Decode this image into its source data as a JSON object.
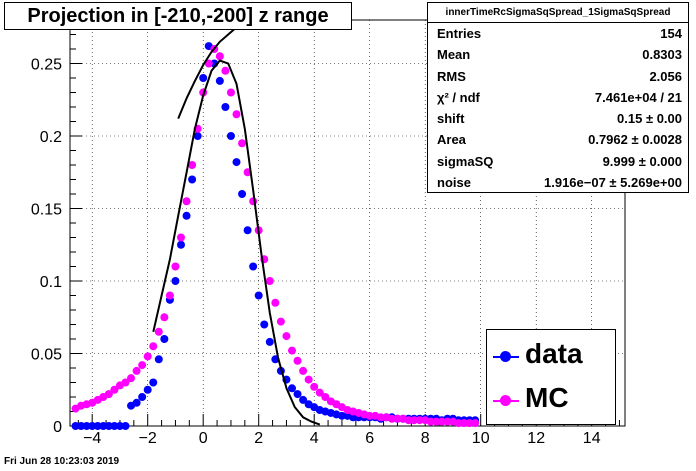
{
  "chart_data": {
    "type": "scatter",
    "title": "Projection in [-210,-200] z range",
    "xlim": [
      -4.8,
      15.2
    ],
    "ylim": [
      0,
      0.28
    ],
    "x_ticks": [
      -4,
      -2,
      0,
      2,
      4,
      6,
      8,
      10,
      12,
      14
    ],
    "y_ticks": [
      0.05,
      0.1,
      0.15,
      0.2,
      0.25
    ],
    "y_tick_labels": [
      "0.05",
      "0.1",
      "0.15",
      "0.2",
      "0.25"
    ],
    "grid": true,
    "legend_position": "bottom-right",
    "series": [
      {
        "name": "data",
        "color": "#0000ff",
        "points": [
          [
            -4.6,
            0.0
          ],
          [
            -4.4,
            0.0
          ],
          [
            -4.2,
            0.0
          ],
          [
            -4.0,
            0.0
          ],
          [
            -3.8,
            0.0
          ],
          [
            -3.6,
            0.0
          ],
          [
            -3.4,
            0.0
          ],
          [
            -3.2,
            0.0
          ],
          [
            -3.0,
            0.0
          ],
          [
            -2.8,
            0.0
          ],
          [
            -2.6,
            0.014
          ],
          [
            -2.4,
            0.016
          ],
          [
            -2.2,
            0.02
          ],
          [
            -2.0,
            0.025
          ],
          [
            -1.8,
            0.03
          ],
          [
            -1.6,
            0.046
          ],
          [
            -1.4,
            0.06
          ],
          [
            -1.2,
            0.087
          ],
          [
            -1.0,
            0.1
          ],
          [
            -0.8,
            0.125
          ],
          [
            -0.6,
            0.145
          ],
          [
            -0.4,
            0.17
          ],
          [
            -0.2,
            0.2
          ],
          [
            0.0,
            0.24
          ],
          [
            0.2,
            0.262
          ],
          [
            0.4,
            0.25
          ],
          [
            0.6,
            0.238
          ],
          [
            0.8,
            0.22
          ],
          [
            1.0,
            0.2
          ],
          [
            1.2,
            0.182
          ],
          [
            1.4,
            0.16
          ],
          [
            1.6,
            0.135
          ],
          [
            1.8,
            0.11
          ],
          [
            2.0,
            0.09
          ],
          [
            2.2,
            0.07
          ],
          [
            2.4,
            0.058
          ],
          [
            2.6,
            0.046
          ],
          [
            2.8,
            0.038
          ],
          [
            3.0,
            0.032
          ],
          [
            3.2,
            0.026
          ],
          [
            3.4,
            0.022
          ],
          [
            3.6,
            0.018
          ],
          [
            3.8,
            0.015
          ],
          [
            4.0,
            0.013
          ],
          [
            4.2,
            0.011
          ],
          [
            4.4,
            0.01
          ],
          [
            4.6,
            0.009
          ],
          [
            4.8,
            0.008
          ],
          [
            5.0,
            0.007
          ],
          [
            5.2,
            0.007
          ],
          [
            5.4,
            0.006
          ],
          [
            5.6,
            0.006
          ],
          [
            5.8,
            0.006
          ],
          [
            6.0,
            0.006
          ],
          [
            6.2,
            0.006
          ],
          [
            6.4,
            0.005
          ],
          [
            6.6,
            0.006
          ],
          [
            6.8,
            0.006
          ],
          [
            7.0,
            0.005
          ],
          [
            7.2,
            0.005
          ],
          [
            7.4,
            0.005
          ],
          [
            7.6,
            0.005
          ],
          [
            7.8,
            0.005
          ],
          [
            8.0,
            0.005
          ],
          [
            8.2,
            0.005
          ],
          [
            8.4,
            0.005
          ],
          [
            8.6,
            0.004
          ],
          [
            8.8,
            0.005
          ],
          [
            9.0,
            0.005
          ],
          [
            9.2,
            0.004
          ],
          [
            9.4,
            0.004
          ],
          [
            9.6,
            0.004
          ],
          [
            9.8,
            0.004
          ]
        ]
      },
      {
        "name": "MC",
        "color": "#ff00ff",
        "points": [
          [
            -4.6,
            0.012
          ],
          [
            -4.4,
            0.014
          ],
          [
            -4.2,
            0.015
          ],
          [
            -4.0,
            0.016
          ],
          [
            -3.8,
            0.018
          ],
          [
            -3.6,
            0.02
          ],
          [
            -3.4,
            0.022
          ],
          [
            -3.2,
            0.025
          ],
          [
            -3.0,
            0.028
          ],
          [
            -2.8,
            0.03
          ],
          [
            -2.6,
            0.033
          ],
          [
            -2.4,
            0.038
          ],
          [
            -2.2,
            0.042
          ],
          [
            -2.0,
            0.048
          ],
          [
            -1.8,
            0.055
          ],
          [
            -1.6,
            0.065
          ],
          [
            -1.4,
            0.075
          ],
          [
            -1.2,
            0.09
          ],
          [
            -1.0,
            0.11
          ],
          [
            -0.8,
            0.13
          ],
          [
            -0.6,
            0.155
          ],
          [
            -0.4,
            0.18
          ],
          [
            -0.2,
            0.205
          ],
          [
            0.0,
            0.23
          ],
          [
            0.2,
            0.25
          ],
          [
            0.4,
            0.26
          ],
          [
            0.6,
            0.255
          ],
          [
            0.8,
            0.245
          ],
          [
            1.0,
            0.23
          ],
          [
            1.2,
            0.215
          ],
          [
            1.4,
            0.195
          ],
          [
            1.6,
            0.175
          ],
          [
            1.8,
            0.155
          ],
          [
            2.0,
            0.135
          ],
          [
            2.2,
            0.115
          ],
          [
            2.4,
            0.1
          ],
          [
            2.6,
            0.085
          ],
          [
            2.8,
            0.072
          ],
          [
            3.0,
            0.062
          ],
          [
            3.2,
            0.052
          ],
          [
            3.4,
            0.045
          ],
          [
            3.6,
            0.038
          ],
          [
            3.8,
            0.032
          ],
          [
            4.0,
            0.027
          ],
          [
            4.2,
            0.023
          ],
          [
            4.4,
            0.02
          ],
          [
            4.6,
            0.017
          ],
          [
            4.8,
            0.015
          ],
          [
            5.0,
            0.013
          ],
          [
            5.2,
            0.011
          ],
          [
            5.4,
            0.01
          ],
          [
            5.6,
            0.009
          ],
          [
            5.8,
            0.008
          ],
          [
            6.0,
            0.007
          ],
          [
            6.2,
            0.007
          ],
          [
            6.4,
            0.006
          ],
          [
            6.6,
            0.006
          ],
          [
            6.8,
            0.005
          ],
          [
            7.0,
            0.005
          ],
          [
            7.2,
            0.005
          ],
          [
            7.4,
            0.004
          ],
          [
            7.6,
            0.004
          ],
          [
            7.8,
            0.004
          ],
          [
            8.0,
            0.004
          ],
          [
            8.2,
            0.003
          ],
          [
            8.4,
            0.003
          ],
          [
            8.6,
            0.003
          ],
          [
            8.8,
            0.003
          ],
          [
            9.0,
            0.003
          ],
          [
            9.2,
            0.002
          ],
          [
            9.4,
            0.002
          ],
          [
            9.6,
            0.002
          ],
          [
            9.8,
            0.002
          ]
        ]
      }
    ],
    "fit_curve": {
      "color": "#000000",
      "points": [
        [
          -1.8,
          0.065
        ],
        [
          -1.5,
          0.09
        ],
        [
          -1.2,
          0.115
        ],
        [
          -0.9,
          0.145
        ],
        [
          -0.6,
          0.175
        ],
        [
          -0.3,
          0.205
        ],
        [
          0.0,
          0.228
        ],
        [
          0.3,
          0.245
        ],
        [
          0.6,
          0.252
        ],
        [
          0.9,
          0.25
        ],
        [
          1.2,
          0.236
        ],
        [
          1.5,
          0.205
        ],
        [
          1.8,
          0.163
        ],
        [
          2.1,
          0.118
        ],
        [
          2.4,
          0.078
        ],
        [
          2.7,
          0.047
        ],
        [
          3.0,
          0.026
        ],
        [
          3.3,
          0.013
        ],
        [
          3.6,
          0.006
        ],
        [
          3.9,
          0.003
        ],
        [
          4.2,
          0.001
        ]
      ]
    },
    "fit_curve_upper": {
      "color": "#000000",
      "points": [
        [
          -0.9,
          0.212
        ],
        [
          -0.6,
          0.226
        ],
        [
          -0.3,
          0.238
        ],
        [
          0.0,
          0.249
        ],
        [
          0.3,
          0.258
        ],
        [
          0.6,
          0.265
        ],
        [
          0.9,
          0.27
        ],
        [
          1.2,
          0.275
        ],
        [
          1.5,
          0.279
        ]
      ]
    }
  },
  "stats_box": {
    "name": "innerTimeRcSigmaSqSpread_1SigmaSqSpread",
    "rows": [
      {
        "key": "Entries",
        "value": "154"
      },
      {
        "key": "Mean",
        "value": "0.8303"
      },
      {
        "key": "RMS",
        "value": "2.056"
      },
      {
        "key": "χ² / ndf",
        "value": "7.461e+04 / 21"
      },
      {
        "key": "shift",
        "value": "0.15 ± 0.00"
      },
      {
        "key": "Area",
        "value": "0.7962 ± 0.0028"
      },
      {
        "key": "sigmaSQ",
        "value": "9.999 ± 0.000"
      },
      {
        "key": "noise",
        "value": "1.916e−07 ± 5.269e+00"
      }
    ]
  },
  "legend": {
    "entries": [
      {
        "label": "data",
        "color": "#0000ff"
      },
      {
        "label": "MC",
        "color": "#ff00ff"
      }
    ]
  },
  "footer": {
    "timestamp": "Fri Jun 28 10:23:03 2019"
  }
}
